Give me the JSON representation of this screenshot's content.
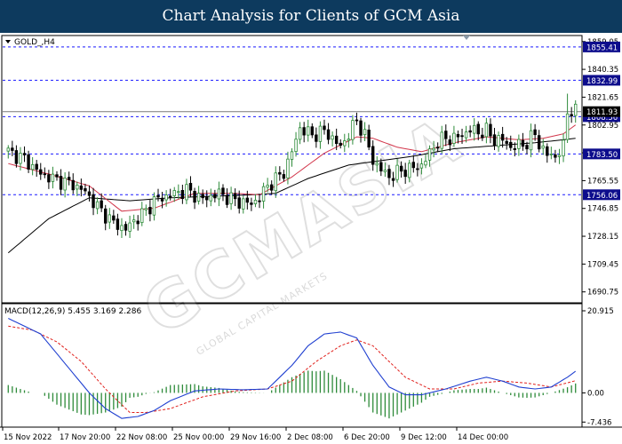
{
  "banner": {
    "title": "Chart Analysis for Clients of GCM Asia"
  },
  "watermark": {
    "main": "GCMASIA",
    "sub": "GLOBAL CAPITAL MARKETS"
  },
  "colors": {
    "background": "#ffffff",
    "banner": "#0d3a5e",
    "bull_candle": "#2e8b3a",
    "bear_candle": "#000000",
    "ma_fast": "#d2364b",
    "ma_slow": "#000000",
    "level_line": "#1a1aff",
    "level_label_bg": "#0d0d8c",
    "macd_line": "#1f3fd0",
    "signal_line": "#e0201c",
    "histogram": "#2e8b3a"
  },
  "chart_data": [
    {
      "type": "candlestick",
      "title": "GOLD_,H4",
      "ylim": [
        1684.0,
        1862.5
      ],
      "y_ticks": [
        1859.05,
        1840.35,
        1821.65,
        1802.95,
        1784.25,
        1765.55,
        1746.85,
        1728.15,
        1709.45,
        1690.75
      ],
      "x_ticks": [
        "15 Nov 2022",
        "17 Nov 20:00",
        "22 Nov 08:00",
        "25 Nov 00:00",
        "29 Nov 16:00",
        "2 Dec 08:00",
        "6 Dec 20:00",
        "9 Dec 12:00",
        "14 Dec 00:00"
      ],
      "levels": [
        1855.41,
        1832.99,
        1808.56,
        1783.5,
        1756.06
      ],
      "current_price": 1811.93,
      "price_label": "1811.93",
      "candle_close_anchors": [
        [
          0,
          1785
        ],
        [
          4,
          1780
        ],
        [
          8,
          1770
        ],
        [
          12,
          1766
        ],
        [
          16,
          1763
        ],
        [
          19,
          1758
        ],
        [
          22,
          1748
        ],
        [
          26,
          1737
        ],
        [
          29,
          1733
        ],
        [
          32,
          1741
        ],
        [
          34,
          1745
        ],
        [
          36,
          1752
        ],
        [
          40,
          1756
        ],
        [
          44,
          1759
        ],
        [
          48,
          1753
        ],
        [
          52,
          1757
        ],
        [
          56,
          1752
        ],
        [
          60,
          1750
        ],
        [
          62,
          1754
        ],
        [
          64,
          1762
        ],
        [
          68,
          1771
        ],
        [
          70,
          1785
        ],
        [
          72,
          1801
        ],
        [
          75,
          1796
        ],
        [
          78,
          1799
        ],
        [
          80,
          1794
        ],
        [
          82,
          1788
        ],
        [
          84,
          1797
        ],
        [
          86,
          1806
        ],
        [
          88,
          1796
        ],
        [
          90,
          1779
        ],
        [
          92,
          1773
        ],
        [
          94,
          1768
        ],
        [
          96,
          1771
        ],
        [
          98,
          1773
        ],
        [
          100,
          1774
        ],
        [
          102,
          1776
        ],
        [
          104,
          1784
        ],
        [
          106,
          1792
        ],
        [
          108,
          1794
        ],
        [
          110,
          1794
        ],
        [
          112,
          1796
        ],
        [
          114,
          1800
        ],
        [
          116,
          1798
        ],
        [
          118,
          1799
        ],
        [
          120,
          1793
        ],
        [
          122,
          1793
        ],
        [
          124,
          1788
        ],
        [
          126,
          1789
        ],
        [
          128,
          1791
        ],
        [
          130,
          1797
        ],
        [
          131,
          1790
        ],
        [
          133,
          1783
        ],
        [
          135,
          1782
        ],
        [
          136,
          1785
        ],
        [
          137,
          1788
        ],
        [
          138,
          1812
        ],
        [
          139,
          1813
        ],
        [
          140,
          1812
        ]
      ],
      "ma_fast": [
        [
          0,
          1777
        ],
        [
          10,
          1770
        ],
        [
          20,
          1762
        ],
        [
          28,
          1745
        ],
        [
          36,
          1747
        ],
        [
          46,
          1757
        ],
        [
          56,
          1757
        ],
        [
          62,
          1756
        ],
        [
          70,
          1768
        ],
        [
          78,
          1784
        ],
        [
          86,
          1795
        ],
        [
          90,
          1794
        ],
        [
          96,
          1788
        ],
        [
          102,
          1785
        ],
        [
          110,
          1791
        ],
        [
          118,
          1795
        ],
        [
          126,
          1793
        ],
        [
          132,
          1794
        ],
        [
          137,
          1797
        ],
        [
          140,
          1803
        ]
      ],
      "ma_slow": [
        [
          0,
          1717
        ],
        [
          10,
          1740
        ],
        [
          20,
          1754
        ],
        [
          30,
          1752
        ],
        [
          40,
          1754
        ],
        [
          50,
          1755
        ],
        [
          60,
          1756
        ],
        [
          66,
          1757
        ],
        [
          74,
          1767
        ],
        [
          84,
          1776
        ],
        [
          92,
          1779
        ],
        [
          100,
          1782
        ],
        [
          110,
          1787
        ],
        [
          120,
          1789
        ],
        [
          130,
          1791
        ],
        [
          137,
          1793
        ],
        [
          140,
          1794
        ]
      ]
    },
    {
      "type": "macd",
      "title": "MACD(12,26,9) 5.455 3.169 2.286",
      "params": "12,26,9",
      "values": {
        "macd": 5.455,
        "signal": 3.169,
        "histogram": 2.286
      },
      "ylim": [
        -8.5,
        22.5
      ],
      "y_ticks": [
        20.915,
        0.0,
        -7.436
      ],
      "macd_line": [
        [
          0,
          19.0
        ],
        [
          4,
          17.0
        ],
        [
          8,
          15.0
        ],
        [
          12,
          10.0
        ],
        [
          16,
          5.0
        ],
        [
          20,
          0.0
        ],
        [
          24,
          -4.0
        ],
        [
          28,
          -6.5
        ],
        [
          32,
          -6.0
        ],
        [
          36,
          -4.5
        ],
        [
          40,
          -2.0
        ],
        [
          46,
          0.5
        ],
        [
          52,
          1.0
        ],
        [
          58,
          0.8
        ],
        [
          64,
          1.0
        ],
        [
          70,
          7.0
        ],
        [
          74,
          12.0
        ],
        [
          78,
          15.0
        ],
        [
          82,
          15.5
        ],
        [
          86,
          14.0
        ],
        [
          90,
          7.0
        ],
        [
          94,
          1.5
        ],
        [
          98,
          -0.5
        ],
        [
          102,
          -0.5
        ],
        [
          108,
          1.0
        ],
        [
          114,
          3.0
        ],
        [
          118,
          4.0
        ],
        [
          122,
          3.0
        ],
        [
          126,
          1.5
        ],
        [
          130,
          1.0
        ],
        [
          134,
          1.5
        ],
        [
          138,
          4.0
        ],
        [
          140,
          5.5
        ]
      ],
      "signal_line": [
        [
          0,
          17.0
        ],
        [
          6,
          16.0
        ],
        [
          12,
          13.0
        ],
        [
          18,
          8.0
        ],
        [
          24,
          1.0
        ],
        [
          30,
          -5.0
        ],
        [
          34,
          -5.0
        ],
        [
          40,
          -4.0
        ],
        [
          48,
          -1.0
        ],
        [
          56,
          0.5
        ],
        [
          64,
          1.0
        ],
        [
          70,
          3.0
        ],
        [
          76,
          8.0
        ],
        [
          82,
          12.0
        ],
        [
          86,
          13.5
        ],
        [
          90,
          12.0
        ],
        [
          94,
          8.0
        ],
        [
          98,
          4.0
        ],
        [
          104,
          1.0
        ],
        [
          110,
          1.0
        ],
        [
          116,
          2.5
        ],
        [
          122,
          3.0
        ],
        [
          128,
          2.5
        ],
        [
          134,
          1.5
        ],
        [
          140,
          3.1
        ]
      ]
    }
  ]
}
